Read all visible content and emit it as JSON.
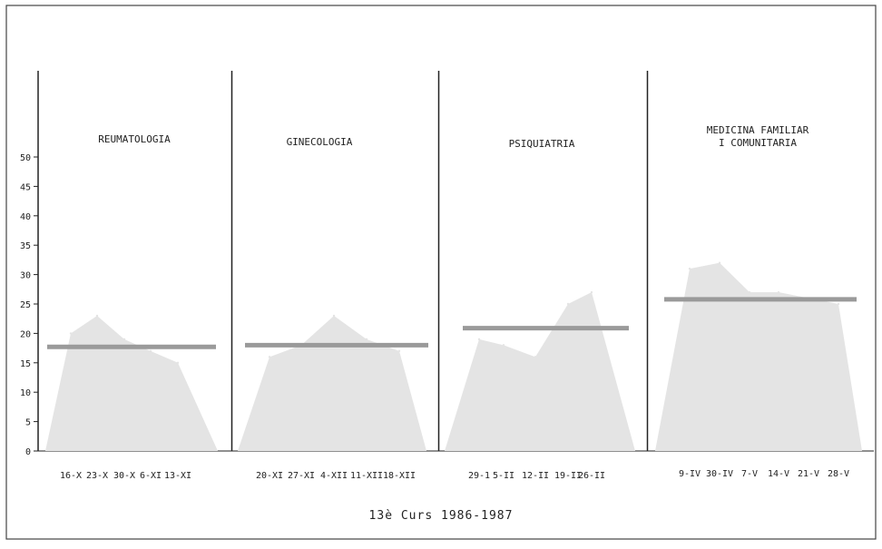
{
  "chart_data": {
    "type": "area",
    "caption": "13è Curs 1986-1987",
    "y_ticks": [
      0,
      5,
      10,
      15,
      20,
      25,
      30,
      35,
      40,
      45,
      50
    ],
    "ylim": [
      0,
      50
    ],
    "colors": {
      "area": "#e4e4e4",
      "mean_line": "#9a9a9a",
      "axis": "#222222",
      "frame": "#444444"
    },
    "panels": [
      {
        "title": [
          "REUMATOLOGIA"
        ],
        "categories": [
          "16-X",
          "23-X",
          "30-X",
          "6-XI",
          "13-XI"
        ],
        "values": [
          20,
          23,
          19,
          17,
          15
        ],
        "mean": 17.7
      },
      {
        "title": [
          "GINECOLOGIA"
        ],
        "categories": [
          "20-XI",
          "27-XI",
          "4-XII",
          "11-XII",
          "18-XII"
        ],
        "values": [
          16,
          18,
          23,
          19,
          17
        ],
        "mean": 18.0
      },
      {
        "title": [
          "PSIQUIATRIA"
        ],
        "categories": [
          "29-1",
          "5-II",
          "12-II",
          "19-II",
          "26-II"
        ],
        "values": [
          19,
          18,
          16,
          25,
          27
        ],
        "mean": 20.9
      },
      {
        "title": [
          "MEDICINA FAMILIAR",
          "I COMUNITARIA"
        ],
        "categories": [
          "9-IV",
          "30-IV",
          "7-V",
          "14-V",
          "21-V",
          "28-V"
        ],
        "values": [
          31,
          32,
          27,
          27,
          26,
          25
        ],
        "mean": 25.8
      }
    ]
  }
}
